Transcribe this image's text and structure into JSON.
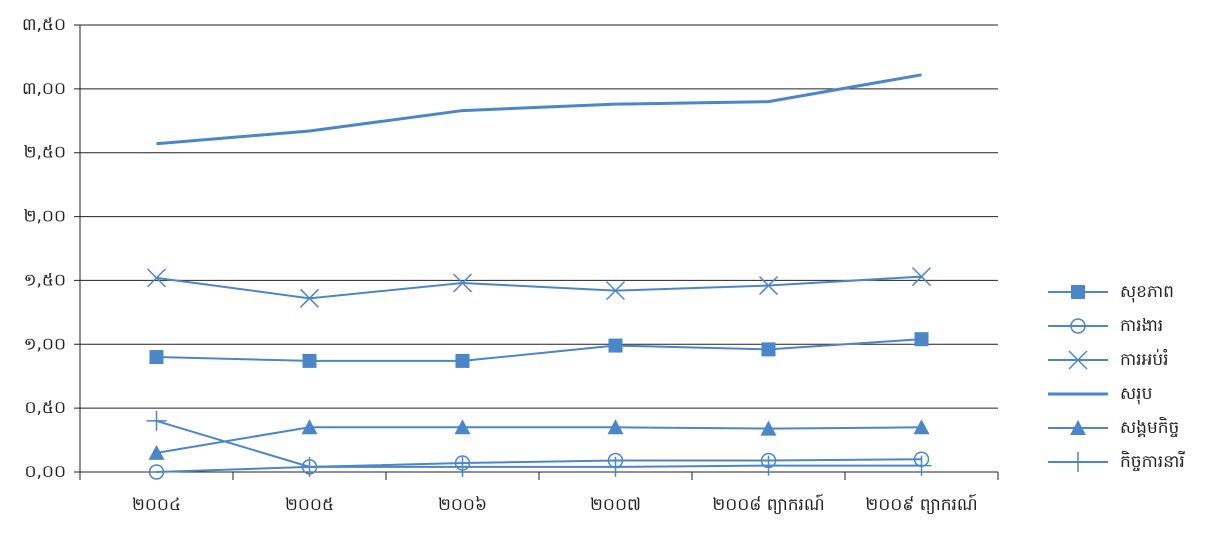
{
  "chart_data": {
    "type": "line",
    "categories": [
      "២០០៤",
      "២០០៥",
      "២០០៦",
      "២០០៧",
      "២០០៨ ព្យាករណ៍",
      "២០០៩ ព្យាករណ៍"
    ],
    "series": [
      {
        "name": "សុខភាព",
        "color": "#4a86c8",
        "marker": "square",
        "values": [
          0.9,
          0.87,
          0.87,
          0.99,
          0.96,
          1.04
        ]
      },
      {
        "name": "ការងារ",
        "color": "#4a86c8",
        "marker": "circle",
        "values": [
          0.0,
          0.04,
          0.07,
          0.09,
          0.09,
          0.1
        ]
      },
      {
        "name": "ការអប់រំ",
        "color": "#4a86c8",
        "marker": "x",
        "values": [
          1.52,
          1.36,
          1.48,
          1.42,
          1.46,
          1.53
        ]
      },
      {
        "name": "សរុប",
        "color": "#4a86c8",
        "marker": "none",
        "values": [
          2.57,
          2.67,
          2.83,
          2.88,
          2.9,
          3.11
        ]
      },
      {
        "name": "សង្គមកិច្ច",
        "color": "#4a86c8",
        "marker": "triangle",
        "values": [
          0.15,
          0.35,
          0.35,
          0.35,
          0.34,
          0.35
        ]
      },
      {
        "name": "កិច្ចការនារី",
        "color": "#4a86c8",
        "marker": "plus",
        "values": [
          0.4,
          0.04,
          0.04,
          0.04,
          0.05,
          0.05
        ]
      }
    ],
    "ylim": [
      0,
      3.5
    ],
    "yticks": [
      {
        "value": 0,
        "label": "០,០០"
      },
      {
        "value": 0.5,
        "label": "០,៥០"
      },
      {
        "value": 1,
        "label": "១,០០"
      },
      {
        "value": 1.5,
        "label": "១,៥០"
      },
      {
        "value": 2,
        "label": "២,០០"
      },
      {
        "value": 2.5,
        "label": "២,៥០"
      },
      {
        "value": 3,
        "label": "៣,០០"
      },
      {
        "value": 3.5,
        "label": "៣,៥០"
      }
    ],
    "grid": true,
    "legend": "right"
  }
}
